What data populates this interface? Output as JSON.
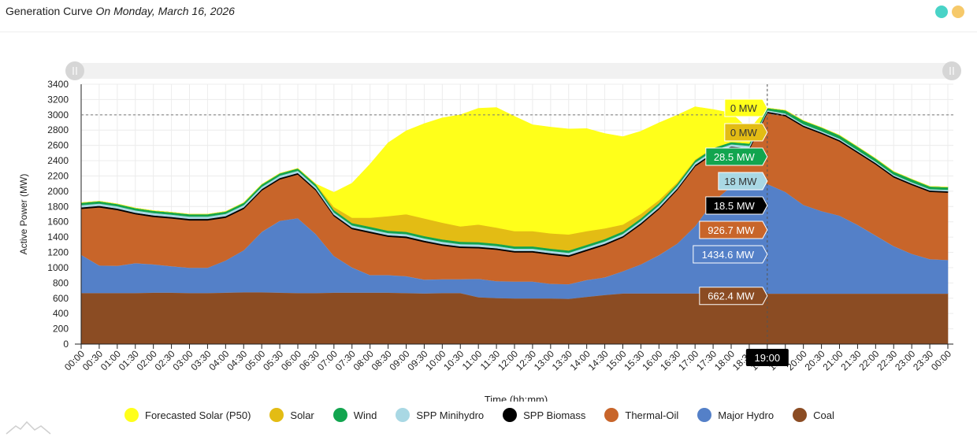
{
  "header": {
    "title": "Generation Curve",
    "date_label": "On Monday, March 16, 2026",
    "dot_colors": [
      "#49d3c7",
      "#f6c96a"
    ]
  },
  "chart_data": {
    "type": "area",
    "stacked": true,
    "title": "Generation Curve",
    "subtitle": "On Monday, March 16, 2026",
    "xlabel": "Time (hh:mm)",
    "ylabel": "Active Power (MW)",
    "ylim": [
      0,
      3400
    ],
    "yticks": [
      0,
      200,
      400,
      600,
      800,
      1000,
      1200,
      1400,
      1600,
      1800,
      2000,
      2200,
      2400,
      2600,
      2800,
      3000,
      3200,
      3400
    ],
    "x": [
      "00:00",
      "00:30",
      "01:00",
      "01:30",
      "02:00",
      "02:30",
      "03:00",
      "03:30",
      "04:00",
      "04:30",
      "05:00",
      "05:30",
      "06:00",
      "06:30",
      "07:00",
      "07:30",
      "08:00",
      "08:30",
      "09:00",
      "09:30",
      "10:00",
      "10:30",
      "11:00",
      "11:30",
      "12:00",
      "12:30",
      "13:00",
      "13:30",
      "14:00",
      "14:30",
      "15:00",
      "15:30",
      "16:00",
      "16:30",
      "17:00",
      "17:30",
      "18:00",
      "18:30",
      "19:00",
      "19:30",
      "20:00",
      "20:30",
      "21:00",
      "21:30",
      "22:00",
      "22:30",
      "23:00",
      "23:30",
      "00:00"
    ],
    "grid": true,
    "legend_position": "bottom",
    "reference_line": 3000,
    "crosshair": {
      "x": "19:00",
      "label": "19:00"
    },
    "series": [
      {
        "name": "Coal",
        "color": "#8b4c23",
        "values": [
          670,
          670,
          670,
          670,
          675,
          675,
          670,
          670,
          675,
          680,
          680,
          675,
          670,
          670,
          675,
          675,
          675,
          675,
          670,
          665,
          670,
          670,
          615,
          605,
          600,
          600,
          600,
          595,
          620,
          645,
          665,
          665,
          665,
          665,
          665,
          665,
          665,
          665,
          662.4,
          662.4,
          662.4,
          662.4,
          662.4,
          662.4,
          662.4,
          662.4,
          662.4,
          662.4,
          662.4
        ]
      },
      {
        "name": "Major Hydro",
        "color": "#5480c8",
        "values": [
          500,
          360,
          355,
          390,
          370,
          345,
          330,
          330,
          420,
          550,
          790,
          940,
          980,
          770,
          480,
          330,
          230,
          230,
          220,
          180,
          180,
          180,
          240,
          220,
          220,
          220,
          190,
          190,
          220,
          230,
          290,
          380,
          500,
          650,
          880,
          1200,
          1400,
          1420,
          1434.6,
          1330,
          1160,
          1080,
          1020,
          900,
          760,
          620,
          520,
          450,
          440
        ]
      },
      {
        "name": "Thermal-Oil",
        "color": "#c8652a",
        "values": [
          600,
          760,
          730,
          640,
          620,
          625,
          620,
          620,
          560,
          540,
          540,
          540,
          570,
          570,
          520,
          500,
          550,
          500,
          500,
          490,
          440,
          410,
          400,
          410,
          380,
          380,
          380,
          360,
          380,
          420,
          440,
          520,
          600,
          700,
          780,
          620,
          500,
          460,
          926.7,
          990,
          1020,
          1010,
          970,
          940,
          930,
          900,
          900,
          880,
          880
        ]
      },
      {
        "name": "SPP Biomass",
        "color": "#000000",
        "values": [
          20,
          20,
          20,
          20,
          20,
          20,
          20,
          20,
          20,
          20,
          20,
          20,
          20,
          20,
          20,
          20,
          20,
          20,
          20,
          20,
          20,
          20,
          20,
          20,
          20,
          20,
          20,
          20,
          20,
          20,
          20,
          20,
          20,
          20,
          20,
          20,
          20,
          20,
          18.5,
          18.5,
          18.5,
          18.5,
          18.5,
          18.5,
          18.5,
          18.5,
          18.5,
          18.5,
          18.5
        ]
      },
      {
        "name": "SPP Minihydro",
        "color": "#a9d8e4",
        "values": [
          30,
          30,
          30,
          30,
          30,
          30,
          30,
          30,
          30,
          30,
          30,
          30,
          30,
          30,
          30,
          30,
          30,
          30,
          30,
          30,
          30,
          30,
          30,
          30,
          30,
          30,
          30,
          30,
          30,
          30,
          30,
          30,
          30,
          30,
          30,
          30,
          30,
          30,
          18,
          18,
          18,
          18,
          18,
          18,
          18,
          18,
          18,
          18,
          18
        ]
      },
      {
        "name": "Wind",
        "color": "#12a54f",
        "values": [
          30,
          30,
          30,
          30,
          30,
          30,
          30,
          30,
          30,
          30,
          30,
          30,
          30,
          30,
          30,
          30,
          30,
          30,
          30,
          30,
          30,
          30,
          30,
          30,
          30,
          30,
          30,
          30,
          30,
          30,
          30,
          30,
          30,
          30,
          30,
          30,
          30,
          30,
          28.5,
          40,
          45,
          45,
          45,
          45,
          40,
          40,
          40,
          35,
          35
        ]
      },
      {
        "name": "Solar",
        "color": "#e3bc14",
        "values": [
          0,
          0,
          0,
          0,
          0,
          0,
          0,
          0,
          0,
          0,
          0,
          0,
          0,
          5,
          40,
          70,
          120,
          190,
          230,
          230,
          220,
          200,
          230,
          210,
          200,
          200,
          200,
          210,
          180,
          140,
          90,
          60,
          40,
          20,
          10,
          5,
          0,
          0,
          0,
          0,
          0,
          0,
          0,
          0,
          0,
          0,
          0,
          0,
          0
        ]
      },
      {
        "name": "Forecasted Solar (P50)",
        "color": "#ffff1a",
        "values": [
          0,
          0,
          0,
          0,
          0,
          0,
          0,
          0,
          0,
          0,
          0,
          0,
          0,
          0,
          190,
          450,
          700,
          960,
          1090,
          1240,
          1370,
          1460,
          1520,
          1570,
          1500,
          1390,
          1390,
          1380,
          1340,
          1240,
          1150,
          1080,
          1010,
          880,
          690,
          500,
          380,
          180,
          0,
          0,
          0,
          0,
          0,
          0,
          0,
          0,
          0,
          0,
          0
        ]
      }
    ],
    "tooltip": {
      "time": "19:00",
      "values": [
        {
          "series": "Forecasted Solar (P50)",
          "label": "0 MW"
        },
        {
          "series": "Solar",
          "label": "0 MW"
        },
        {
          "series": "Wind",
          "label": "28.5 MW"
        },
        {
          "series": "SPP Minihydro",
          "label": "18 MW"
        },
        {
          "series": "SPP Biomass",
          "label": "18.5 MW"
        },
        {
          "series": "Thermal-Oil",
          "label": "926.7 MW"
        },
        {
          "series": "Major Hydro",
          "label": "1434.6 MW"
        },
        {
          "series": "Coal",
          "label": "662.4 MW"
        }
      ]
    }
  },
  "legend": [
    {
      "label": "Forecasted Solar (P50)",
      "color": "#ffff1a"
    },
    {
      "label": "Solar",
      "color": "#e3bc14"
    },
    {
      "label": "Wind",
      "color": "#12a54f"
    },
    {
      "label": "SPP Minihydro",
      "color": "#a9d8e4"
    },
    {
      "label": "SPP Biomass",
      "color": "#000000"
    },
    {
      "label": "Thermal-Oil",
      "color": "#c8652a"
    },
    {
      "label": "Major Hydro",
      "color": "#5480c8"
    },
    {
      "label": "Coal",
      "color": "#8b4c23"
    }
  ]
}
